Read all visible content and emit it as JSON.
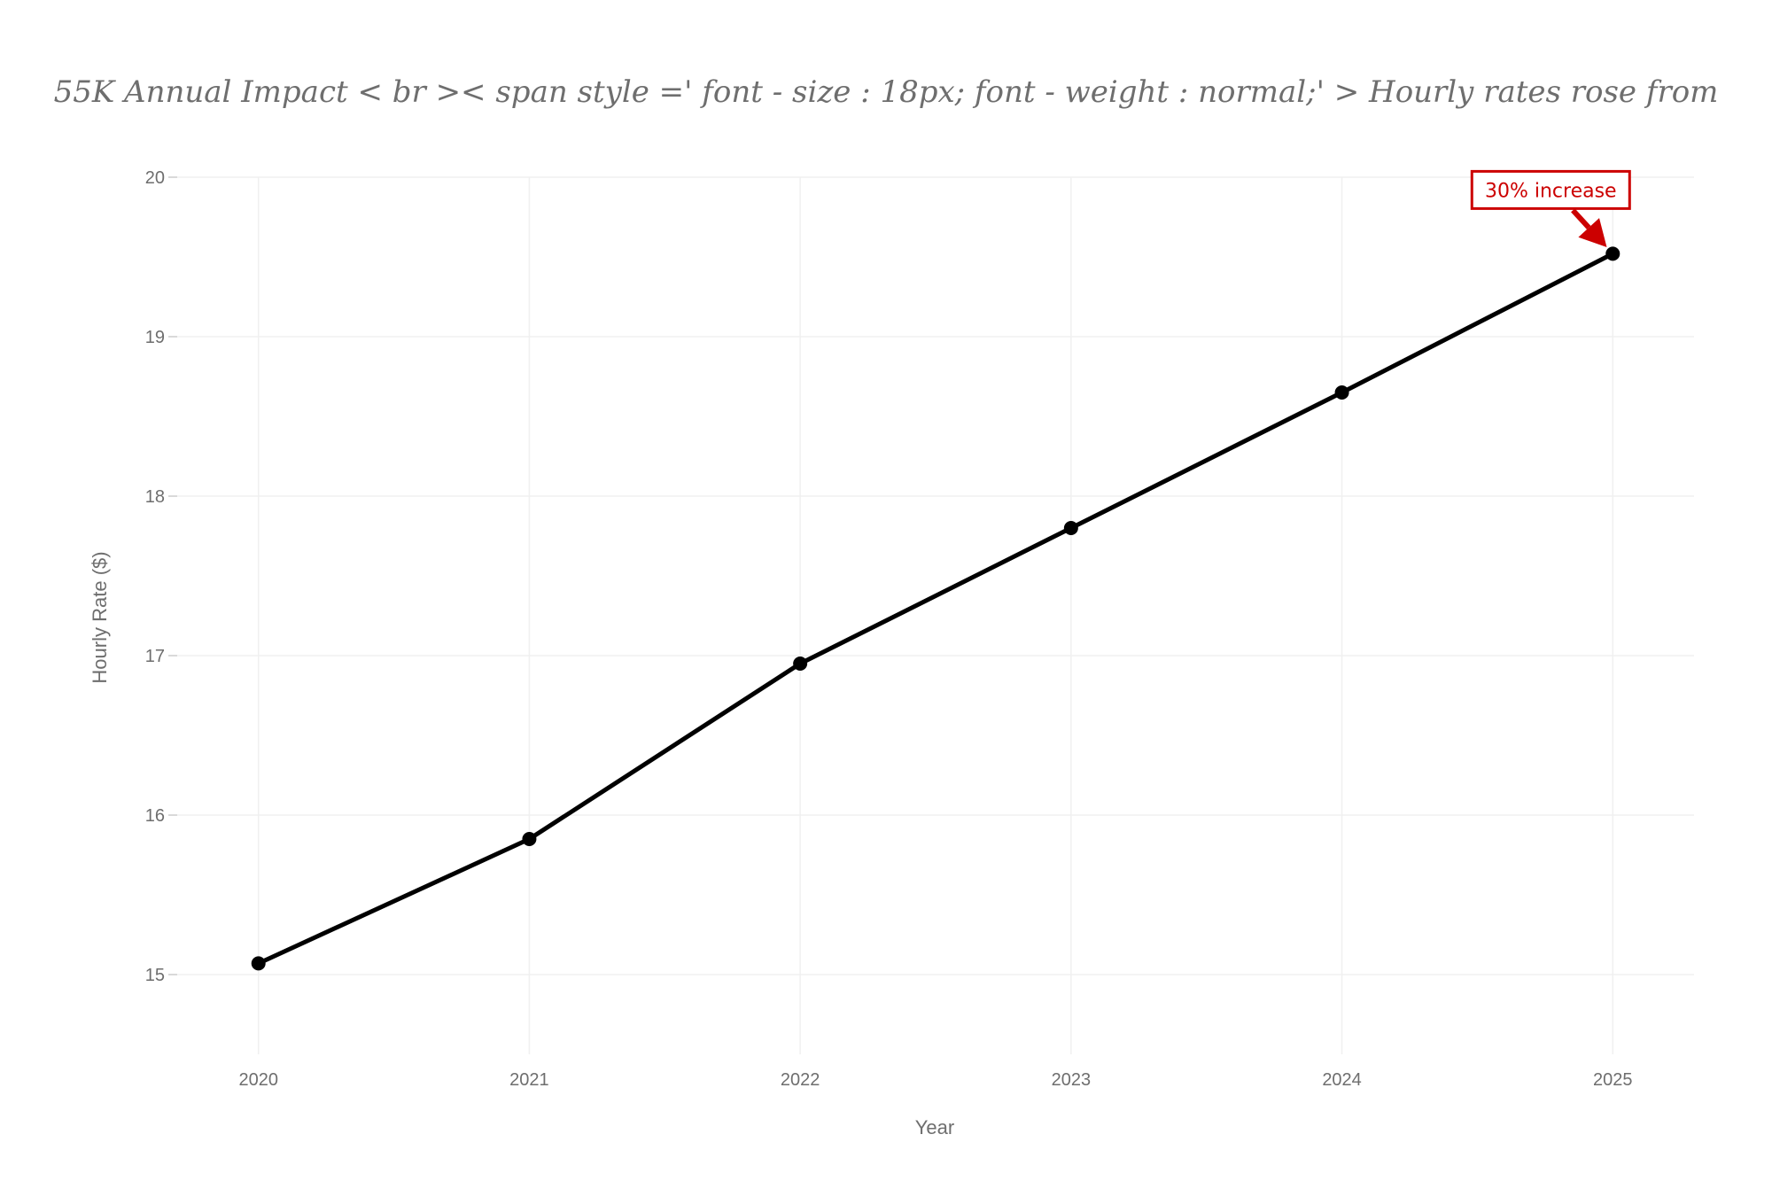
{
  "chart_data": {
    "type": "line",
    "title": "55K Annual Impact < br >< span style =' font - size : 18px; font - weight : normal;' > Hourly rates rose from",
    "xlabel": "Year",
    "ylabel": "Hourly Rate ($)",
    "x": [
      2020,
      2021,
      2022,
      2023,
      2024,
      2025
    ],
    "series": [
      {
        "values": [
          15.07,
          15.85,
          16.95,
          17.8,
          18.65,
          19.52
        ],
        "color": "#000000"
      }
    ],
    "x_ticks": [
      "2020",
      "2021",
      "2022",
      "2023",
      "2024",
      "2025"
    ],
    "y_ticks": [
      "15",
      "16",
      "17",
      "18",
      "19",
      "20"
    ],
    "xlim": [
      2019.7,
      2025.3
    ],
    "ylim": [
      14.5,
      20
    ],
    "grid": true,
    "legend": "none",
    "annotations": [
      {
        "text": "30% increase",
        "x": 2025,
        "y": 19.52,
        "color": "#cc0000"
      }
    ]
  }
}
